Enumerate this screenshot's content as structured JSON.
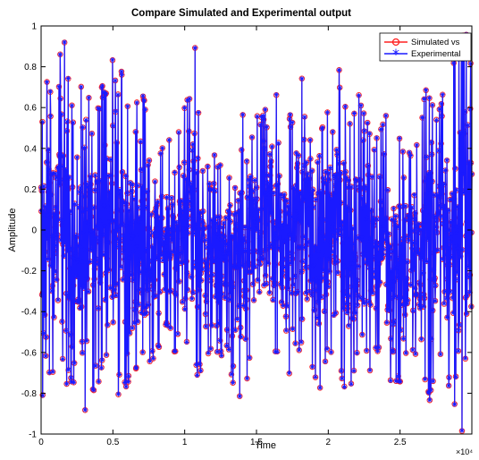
{
  "chart_data": {
    "type": "line",
    "title": "Compare Simulated and Experimental output",
    "xlabel": "Time",
    "ylabel": "Amplitude",
    "xlim": [
      0,
      30000
    ],
    "ylim": [
      -1,
      1
    ],
    "x_ticks": [
      0,
      0.5,
      1,
      1.5,
      2,
      2.5
    ],
    "x_tick_labels": [
      "0",
      "0.5",
      "1",
      "1.5",
      "2",
      "2.5"
    ],
    "x_exponent_label": "×10⁴",
    "y_ticks": [
      -1,
      -0.8,
      -0.6,
      -0.4,
      -0.2,
      0,
      0.2,
      0.4,
      0.6,
      0.8,
      1
    ],
    "y_tick_labels": [
      "-1",
      "-0.8",
      "-0.6",
      "-0.4",
      "-0.2",
      "0",
      "0.2",
      "0.4",
      "0.6",
      "0.8",
      "1"
    ],
    "grid": false,
    "legend_position": "top-right",
    "series": [
      {
        "name": "Simulated vs",
        "color": "#ff2020",
        "marker": "o",
        "envelope_max": [
          0.82,
          0.74,
          0.97,
          0.55,
          0.91,
          0.62,
          0.8,
          0.93,
          0.55,
          0.72,
          0.53,
          0.47,
          0.45,
          0.6,
          0.93,
          0.47,
          0.36,
          0.48,
          0.55,
          0.65,
          0.57,
          0.82,
          0.46,
          0.67,
          0.8,
          0.52,
          0.61,
          0.83,
          0.52,
          0.72,
          0.42,
          0.6,
          0.54,
          0.4,
          0.45,
          0.75,
          0.6,
          0.78,
          1.0,
          0.93
        ],
        "envelope_min": [
          -0.9,
          -0.75,
          -0.7,
          -0.88,
          -0.93,
          -0.8,
          -0.64,
          -0.83,
          -0.82,
          -0.75,
          -0.68,
          -0.6,
          -0.63,
          -0.55,
          -0.77,
          -0.62,
          -0.6,
          -0.68,
          -0.9,
          -0.66,
          -0.7,
          -0.58,
          -0.77,
          -0.64,
          -0.6,
          -0.82,
          -0.65,
          -0.72,
          -0.83,
          -0.6,
          -0.75,
          -0.6,
          -0.88,
          -0.7,
          -0.65,
          -0.9,
          -0.58,
          -0.82,
          -1.0,
          -0.9
        ]
      },
      {
        "name": "Experimental",
        "color": "#1a1aff",
        "marker": "*",
        "envelope_max": [
          0.82,
          0.74,
          0.97,
          0.55,
          0.91,
          0.62,
          0.8,
          0.93,
          0.55,
          0.72,
          0.53,
          0.47,
          0.45,
          0.6,
          0.93,
          0.47,
          0.36,
          0.48,
          0.55,
          0.65,
          0.57,
          0.82,
          0.46,
          0.67,
          0.8,
          0.52,
          0.61,
          0.83,
          0.52,
          0.72,
          0.42,
          0.6,
          0.54,
          0.4,
          0.45,
          0.75,
          0.6,
          0.78,
          1.0,
          0.93
        ],
        "envelope_min": [
          -0.9,
          -0.75,
          -0.7,
          -0.88,
          -0.93,
          -0.8,
          -0.64,
          -0.83,
          -0.82,
          -0.75,
          -0.68,
          -0.6,
          -0.63,
          -0.55,
          -0.77,
          -0.62,
          -0.6,
          -0.68,
          -0.9,
          -0.66,
          -0.7,
          -0.58,
          -0.77,
          -0.64,
          -0.6,
          -0.82,
          -0.65,
          -0.72,
          -0.83,
          -0.6,
          -0.75,
          -0.6,
          -0.88,
          -0.7,
          -0.65,
          -0.9,
          -0.58,
          -0.82,
          -1.0,
          -0.9
        ]
      }
    ]
  }
}
